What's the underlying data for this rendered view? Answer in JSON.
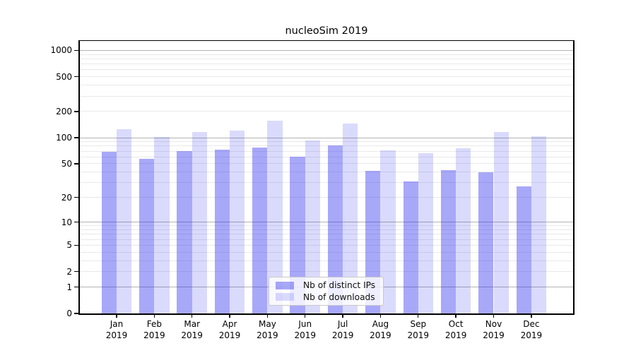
{
  "chart_data": {
    "type": "bar",
    "title": "nucleoSim 2019",
    "categories": [
      "Jan 2019",
      "Feb 2019",
      "Mar 2019",
      "Apr 2019",
      "May 2019",
      "Jun 2019",
      "Jul 2019",
      "Aug 2019",
      "Sep 2019",
      "Oct 2019",
      "Nov 2019",
      "Dec 2019"
    ],
    "series": [
      {
        "name": "Nb of distinct IPs",
        "color": "rgba(38,38,240,0.40)",
        "values": [
          69,
          57,
          70,
          73,
          77,
          60,
          82,
          41,
          31,
          42,
          40,
          27
        ]
      },
      {
        "name": "Nb of downloads",
        "color": "rgba(38,38,240,0.17)",
        "values": [
          126,
          102,
          117,
          121,
          157,
          93,
          146,
          71,
          66,
          76,
          117,
          103
        ]
      }
    ],
    "y_axis": {
      "scale": "log1p",
      "ticks": [
        1000,
        500,
        200,
        100,
        50,
        20,
        10,
        5,
        2,
        1,
        0
      ],
      "top_value": 1281,
      "major_gridlines": [
        1,
        10,
        100,
        1000
      ],
      "grid": true
    },
    "legend": {
      "position": "lower center"
    },
    "colors": {
      "background": "#ffffff",
      "major_grid": "#b3b3b3",
      "minor_grid": "#e9e9e9",
      "axis": "#000000"
    }
  }
}
